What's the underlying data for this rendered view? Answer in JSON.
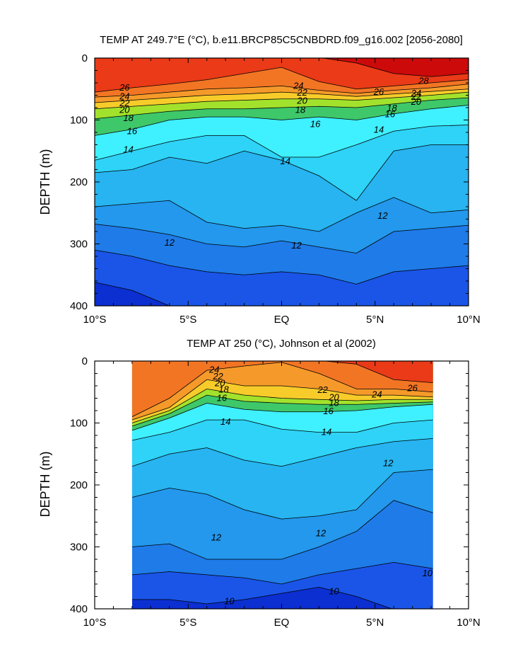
{
  "chart_data": [
    {
      "type": "heatmap",
      "title": "TEMP AT 249.7°E (°C), b.e11.BRCP85C5CNBDRD.f09_g16.002 [2056-2080]",
      "ylabel": "DEPTH (m)",
      "xlabel": "",
      "x_ticks": [
        {
          "v": -10,
          "label": "10°S"
        },
        {
          "v": -5,
          "label": "5°S"
        },
        {
          "v": 0,
          "label": "EQ"
        },
        {
          "v": 5,
          "label": "5°N"
        },
        {
          "v": 10,
          "label": "10°N"
        }
      ],
      "y_ticks": [
        0,
        100,
        200,
        300,
        400
      ],
      "xlim": [
        -10,
        10
      ],
      "ylim": [
        0,
        400
      ],
      "data_extent_x": [
        -10,
        10
      ],
      "levels": [
        9,
        10,
        11,
        12,
        13,
        14,
        15,
        16,
        17,
        18,
        19,
        20,
        21,
        22,
        23,
        24,
        25,
        26,
        27,
        28
      ],
      "colors": [
        "#0b2fd1",
        "#1a55e8",
        "#1f7be8",
        "#2398ec",
        "#27b4f0",
        "#2ed3f7",
        "#3ff0ff",
        "#3fd8b5",
        "#3ec86a",
        "#2fd02f",
        "#a3e22c",
        "#f0f030",
        "#f7cc2a",
        "#f7a72a",
        "#f59a2a",
        "#f58d28",
        "#f27524",
        "#ee5a1f",
        "#ea3a17",
        "#e61610",
        "#cc0a0a"
      ],
      "grid": false,
      "legend": "none",
      "profile_x": [
        -10,
        -8,
        -6,
        -4,
        -2,
        0,
        2,
        4,
        6,
        8,
        10
      ],
      "isotherm_depths": {
        "28": [
          -1,
          -1,
          -1,
          -1,
          -1,
          -1,
          -1,
          8,
          25,
          30,
          25
        ],
        "26": [
          55,
          48,
          42,
          35,
          25,
          15,
          38,
          50,
          45,
          40,
          35
        ],
        "24": [
          63,
          60,
          55,
          50,
          48,
          45,
          52,
          57,
          52,
          48,
          42
        ],
        "22": [
          72,
          68,
          64,
          60,
          58,
          55,
          58,
          62,
          58,
          54,
          50
        ],
        "20": [
          82,
          78,
          74,
          70,
          68,
          66,
          66,
          68,
          64,
          60,
          55
        ],
        "18": [
          98,
          92,
          86,
          82,
          82,
          80,
          78,
          80,
          74,
          68,
          64
        ],
        "16": [
          125,
          115,
          100,
          95,
          95,
          100,
          95,
          100,
          90,
          82,
          76
        ],
        "14": [
          165,
          150,
          135,
          125,
          125,
          160,
          160,
          140,
          118,
          110,
          108
        ],
        "13": [
          185,
          180,
          160,
          170,
          150,
          165,
          190,
          230,
          150,
          140,
          140
        ],
        "12": [
          240,
          235,
          230,
          265,
          275,
          270,
          280,
          250,
          225,
          250,
          245
        ],
        "11": [
          268,
          275,
          285,
          300,
          305,
          295,
          305,
          315,
          280,
          275,
          270
        ],
        "10": [
          310,
          320,
          335,
          345,
          350,
          345,
          350,
          365,
          345,
          340,
          335
        ],
        "9": [
          362,
          375,
          400,
          401,
          401,
          401,
          401,
          401,
          401,
          401,
          401
        ]
      },
      "contour_labels": [
        {
          "text": "26",
          "x": -8.4,
          "y": 48
        },
        {
          "text": "24",
          "x": -8.4,
          "y": 62
        },
        {
          "text": "22",
          "x": -8.4,
          "y": 73
        },
        {
          "text": "20",
          "x": -8.4,
          "y": 84
        },
        {
          "text": "18",
          "x": -8.2,
          "y": 97
        },
        {
          "text": "16",
          "x": -8.0,
          "y": 118
        },
        {
          "text": "14",
          "x": -8.2,
          "y": 148
        },
        {
          "text": "24",
          "x": 0.9,
          "y": 45
        },
        {
          "text": "22",
          "x": 1.1,
          "y": 56
        },
        {
          "text": "20",
          "x": 1.1,
          "y": 69
        },
        {
          "text": "18",
          "x": 1.0,
          "y": 84
        },
        {
          "text": "16",
          "x": 1.8,
          "y": 107
        },
        {
          "text": "14",
          "x": 0.2,
          "y": 167
        },
        {
          "text": "26",
          "x": 5.2,
          "y": 55
        },
        {
          "text": "28",
          "x": 7.6,
          "y": 37
        },
        {
          "text": "24",
          "x": 7.2,
          "y": 57
        },
        {
          "text": "22",
          "x": 7.2,
          "y": 63
        },
        {
          "text": "20",
          "x": 7.2,
          "y": 71
        },
        {
          "text": "18",
          "x": 5.9,
          "y": 81
        },
        {
          "text": "16",
          "x": 5.8,
          "y": 91
        },
        {
          "text": "14",
          "x": 5.2,
          "y": 116
        },
        {
          "text": "12",
          "x": -6.0,
          "y": 298
        },
        {
          "text": "12",
          "x": 0.8,
          "y": 303
        },
        {
          "text": "12",
          "x": 5.4,
          "y": 255
        }
      ]
    },
    {
      "type": "heatmap",
      "title": "TEMP AT 250 (°C), Johnson et al (2002)",
      "ylabel": "DEPTH (m)",
      "xlabel": "",
      "x_ticks": [
        {
          "v": -10,
          "label": "10°S"
        },
        {
          "v": -5,
          "label": "5°S"
        },
        {
          "v": 0,
          "label": "EQ"
        },
        {
          "v": 5,
          "label": "5°N"
        },
        {
          "v": 10,
          "label": "10°N"
        }
      ],
      "y_ticks": [
        0,
        100,
        200,
        300,
        400
      ],
      "xlim": [
        -10,
        10
      ],
      "ylim": [
        0,
        400
      ],
      "data_extent_x": [
        -8,
        8.1
      ],
      "levels": [
        9,
        10,
        11,
        12,
        13,
        14,
        15,
        16,
        17,
        18,
        19,
        20,
        21,
        22,
        23,
        24,
        25,
        26,
        27,
        28
      ],
      "colors": [
        "#0b2fd1",
        "#1a55e8",
        "#1f7be8",
        "#2398ec",
        "#27b4f0",
        "#2ed3f7",
        "#3ff0ff",
        "#3fd8b5",
        "#3ec86a",
        "#2fd02f",
        "#a3e22c",
        "#f0f030",
        "#f7cc2a",
        "#f7a72a",
        "#f59a2a",
        "#f58d28",
        "#f27524",
        "#ee5a1f",
        "#ea3a17",
        "#e61610",
        "#cc0a0a"
      ],
      "grid": false,
      "legend": "none",
      "profile_x": [
        -8,
        -6,
        -4,
        -2,
        0,
        2,
        4,
        6,
        8.1
      ],
      "isotherm_depths": {
        "26": [
          -1,
          -1,
          -1,
          -1,
          -1,
          -1,
          5,
          30,
          35
        ],
        "24": [
          90,
          60,
          15,
          8,
          2,
          20,
          45,
          45,
          50
        ],
        "22": [
          95,
          75,
          30,
          40,
          40,
          45,
          55,
          55,
          58
        ],
        "20": [
          100,
          80,
          45,
          55,
          60,
          62,
          64,
          62,
          62
        ],
        "18": [
          105,
          85,
          55,
          65,
          68,
          70,
          70,
          68,
          66
        ],
        "16": [
          112,
          92,
          68,
          78,
          82,
          82,
          80,
          74,
          70
        ],
        "14": [
          128,
          115,
          95,
          95,
          110,
          115,
          115,
          100,
          95
        ],
        "13": [
          170,
          150,
          140,
          160,
          170,
          155,
          140,
          130,
          125
        ],
        "12": [
          220,
          205,
          215,
          240,
          255,
          250,
          240,
          180,
          175
        ],
        "11": [
          300,
          295,
          320,
          320,
          320,
          300,
          275,
          225,
          245
        ],
        "10": [
          345,
          340,
          345,
          350,
          360,
          345,
          335,
          325,
          335
        ],
        "9": [
          385,
          385,
          392,
          385,
          375,
          365,
          380,
          401,
          401
        ]
      },
      "contour_labels": [
        {
          "text": "24",
          "x": -3.6,
          "y": 14
        },
        {
          "text": "22",
          "x": -3.4,
          "y": 25
        },
        {
          "text": "20",
          "x": -3.3,
          "y": 36
        },
        {
          "text": "18",
          "x": -3.1,
          "y": 46
        },
        {
          "text": "16",
          "x": -3.2,
          "y": 60
        },
        {
          "text": "14",
          "x": -3.0,
          "y": 98
        },
        {
          "text": "22",
          "x": 2.2,
          "y": 47
        },
        {
          "text": "20",
          "x": 2.8,
          "y": 59
        },
        {
          "text": "18",
          "x": 2.8,
          "y": 68
        },
        {
          "text": "16",
          "x": 2.5,
          "y": 81
        },
        {
          "text": "14",
          "x": 2.4,
          "y": 115
        },
        {
          "text": "24",
          "x": 5.1,
          "y": 54
        },
        {
          "text": "26",
          "x": 7.0,
          "y": 44
        },
        {
          "text": "12",
          "x": 5.7,
          "y": 165
        },
        {
          "text": "12",
          "x": -3.5,
          "y": 285
        },
        {
          "text": "12",
          "x": 2.1,
          "y": 278
        },
        {
          "text": "10",
          "x": 7.8,
          "y": 343
        },
        {
          "text": "10",
          "x": -2.8,
          "y": 388
        },
        {
          "text": "10",
          "x": 2.8,
          "y": 372
        }
      ]
    }
  ]
}
